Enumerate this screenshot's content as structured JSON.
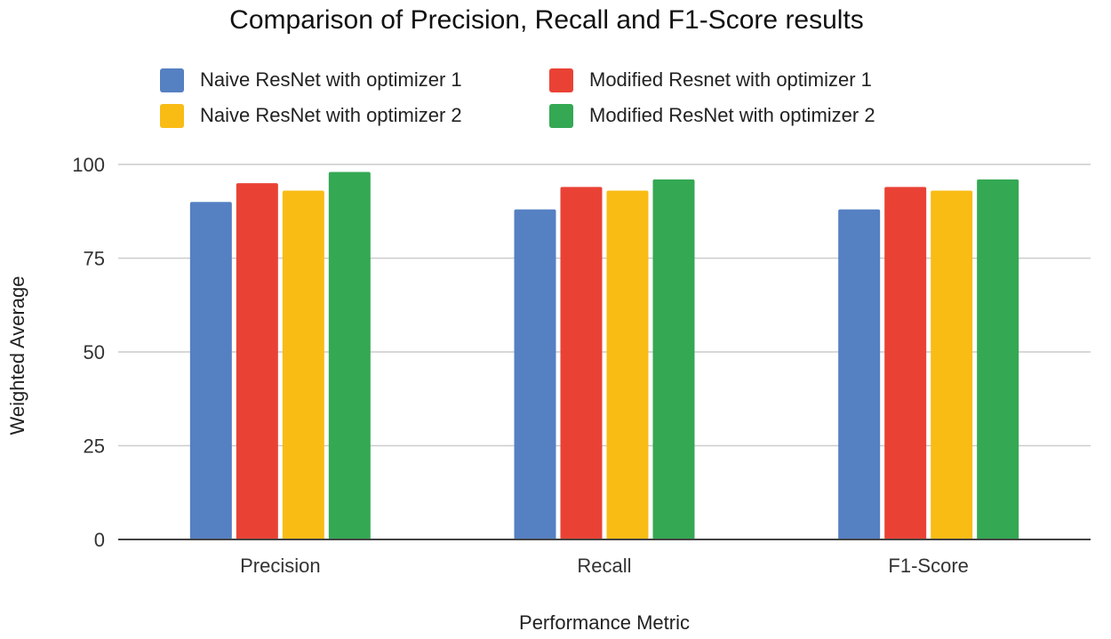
{
  "chart_data": {
    "type": "bar",
    "title": "Comparison of Precision, Recall and F1-Score results",
    "xlabel": "Performance Metric",
    "ylabel": "Weighted Average",
    "categories": [
      "Precision",
      "Recall",
      "F1-Score"
    ],
    "ylim": [
      0,
      100
    ],
    "yticks": [
      "0",
      "25",
      "50",
      "75",
      "100"
    ],
    "grid": true,
    "legend_position": "top",
    "series": [
      {
        "name": "Naive ResNet with optimizer 1",
        "color": "#5580c2",
        "values": [
          90,
          88,
          88
        ]
      },
      {
        "name": "Modified Resnet with optimizer 1",
        "color": "#e94235",
        "values": [
          95,
          94,
          94
        ]
      },
      {
        "name": "Naive ResNet with optimizer 2",
        "color": "#f9bc15",
        "values": [
          93,
          93,
          93
        ]
      },
      {
        "name": "Modified ResNet with optimizer 2",
        "color": "#34a853",
        "values": [
          98,
          96,
          96
        ]
      }
    ]
  }
}
